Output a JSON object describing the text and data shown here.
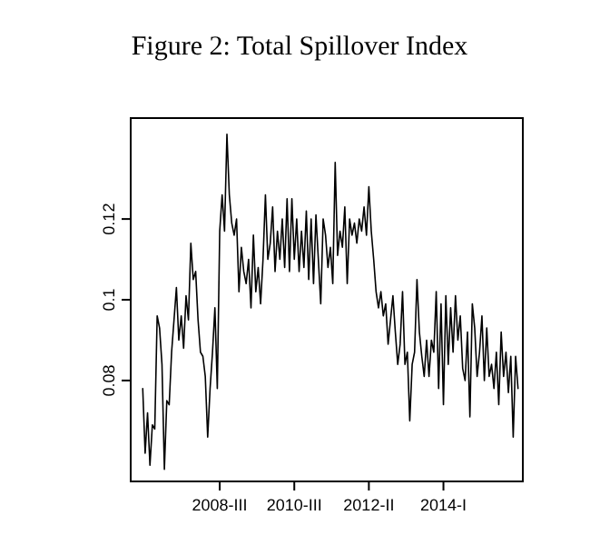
{
  "chart_data": {
    "type": "line",
    "title": "Figure 2: Total Spillover Index",
    "categories": [
      null,
      null,
      null,
      null,
      null,
      null,
      null,
      null,
      null,
      null,
      null,
      null,
      null,
      null,
      null,
      null,
      null,
      null,
      null,
      null,
      null,
      null,
      null,
      null,
      null,
      null,
      null,
      null,
      null,
      null,
      null,
      null,
      "2008-III",
      null,
      null,
      null,
      null,
      null,
      null,
      null,
      null,
      null,
      null,
      null,
      null,
      null,
      null,
      null,
      null,
      null,
      null,
      null,
      null,
      null,
      null,
      null,
      null,
      null,
      null,
      null,
      null,
      null,
      null,
      "2010-III",
      null,
      null,
      null,
      null,
      null,
      null,
      null,
      null,
      null,
      null,
      null,
      null,
      null,
      null,
      null,
      null,
      null,
      null,
      null,
      null,
      null,
      null,
      null,
      null,
      null,
      null,
      null,
      null,
      null,
      null,
      "2012-II",
      null,
      null,
      null,
      null,
      null,
      null,
      null,
      null,
      null,
      null,
      null,
      null,
      null,
      null,
      null,
      null,
      null,
      null,
      null,
      null,
      null,
      null,
      null,
      null,
      null,
      null,
      null,
      null,
      null,
      null,
      "2014-I",
      null,
      null,
      null,
      null,
      null,
      null,
      null,
      null,
      null,
      null,
      null,
      null,
      null,
      null,
      null,
      null,
      null,
      null,
      null,
      null,
      null,
      null,
      null,
      null,
      null,
      null,
      null,
      null,
      null,
      null,
      null
    ],
    "series": [
      {
        "color": "#000000",
        "values": [
          0.078,
          0.062,
          0.072,
          0.059,
          0.069,
          0.068,
          0.096,
          0.093,
          0.084,
          0.058,
          0.075,
          0.074,
          0.087,
          0.095,
          0.103,
          0.09,
          0.096,
          0.088,
          0.101,
          0.095,
          0.114,
          0.105,
          0.107,
          0.095,
          0.087,
          0.086,
          0.081,
          0.066,
          0.078,
          0.087,
          0.098,
          0.078,
          0.117,
          0.126,
          0.117,
          0.141,
          0.126,
          0.119,
          0.116,
          0.12,
          0.102,
          0.113,
          0.107,
          0.104,
          0.11,
          0.098,
          0.116,
          0.102,
          0.108,
          0.099,
          0.11,
          0.126,
          0.11,
          0.114,
          0.123,
          0.107,
          0.117,
          0.11,
          0.12,
          0.108,
          0.125,
          0.107,
          0.125,
          0.11,
          0.12,
          0.107,
          0.117,
          0.108,
          0.122,
          0.105,
          0.12,
          0.104,
          0.121,
          0.11,
          0.099,
          0.12,
          0.116,
          0.108,
          0.113,
          0.104,
          0.134,
          0.111,
          0.117,
          0.113,
          0.123,
          0.104,
          0.12,
          0.116,
          0.119,
          0.114,
          0.12,
          0.117,
          0.123,
          0.116,
          0.128,
          0.117,
          0.11,
          0.102,
          0.098,
          0.102,
          0.096,
          0.099,
          0.089,
          0.095,
          0.101,
          0.092,
          0.084,
          0.089,
          0.102,
          0.084,
          0.087,
          0.07,
          0.084,
          0.087,
          0.105,
          0.092,
          0.086,
          0.081,
          0.09,
          0.081,
          0.09,
          0.087,
          0.102,
          0.078,
          0.099,
          0.074,
          0.101,
          0.084,
          0.098,
          0.087,
          0.101,
          0.09,
          0.096,
          0.083,
          0.08,
          0.092,
          0.071,
          0.099,
          0.093,
          0.081,
          0.087,
          0.096,
          0.08,
          0.093,
          0.081,
          0.084,
          0.078,
          0.087,
          0.074,
          0.092,
          0.081,
          0.087,
          0.077,
          0.086,
          0.066,
          0.086,
          0.078
        ]
      }
    ],
    "ylim": [
      0.055,
      0.145
    ],
    "yticks": [
      0.08,
      0.1,
      0.12
    ]
  }
}
